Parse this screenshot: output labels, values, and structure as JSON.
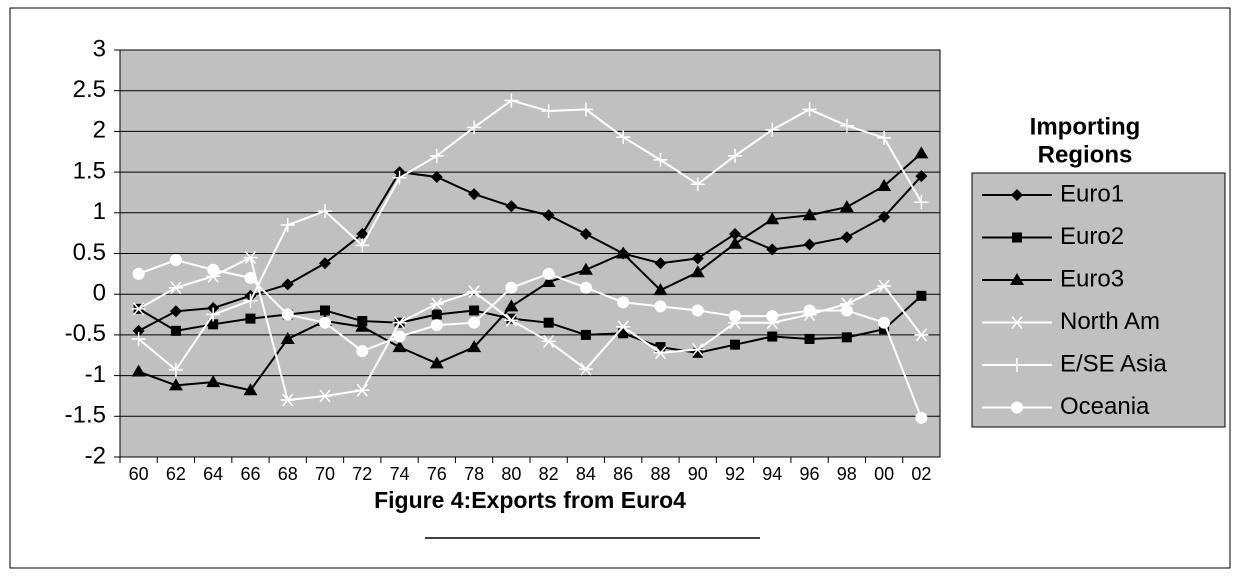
{
  "chart_data": {
    "type": "line",
    "title": "Figure 4:Exports from Euro4",
    "legend_title": "Importing Regions",
    "categories": [
      "60",
      "62",
      "64",
      "66",
      "68",
      "70",
      "72",
      "74",
      "76",
      "78",
      "80",
      "82",
      "84",
      "86",
      "88",
      "90",
      "92",
      "94",
      "96",
      "98",
      "00",
      "02"
    ],
    "ylim": [
      -2,
      3
    ],
    "yticks": [
      -2,
      -1.5,
      -1,
      -0.5,
      0,
      0.5,
      1,
      1.5,
      2,
      2.5,
      3
    ],
    "grid": true,
    "legend": "right",
    "series": [
      {
        "name": "Euro1",
        "color": "#000000",
        "marker": "diamond",
        "values": [
          -0.45,
          -0.21,
          -0.17,
          -0.02,
          0.12,
          0.38,
          0.74,
          1.5,
          1.44,
          1.23,
          1.08,
          0.97,
          0.74,
          0.5,
          0.38,
          0.44,
          0.74,
          0.55,
          0.61,
          0.7,
          0.95,
          1.45
        ]
      },
      {
        "name": "Euro2",
        "color": "#000000",
        "marker": "square",
        "values": [
          -0.18,
          -0.45,
          -0.37,
          -0.3,
          -0.25,
          -0.2,
          -0.33,
          -0.35,
          -0.25,
          -0.2,
          -0.3,
          -0.35,
          -0.5,
          -0.48,
          -0.65,
          -0.72,
          -0.62,
          -0.52,
          -0.55,
          -0.53,
          -0.43,
          -0.02
        ]
      },
      {
        "name": "Euro3",
        "color": "#000000",
        "marker": "triangle",
        "values": [
          -0.95,
          -1.12,
          -1.08,
          -1.18,
          -0.55,
          -0.33,
          -0.4,
          -0.65,
          -0.85,
          -0.65,
          -0.15,
          0.15,
          0.3,
          0.5,
          0.05,
          0.27,
          0.62,
          0.92,
          0.97,
          1.07,
          1.33,
          1.73
        ]
      },
      {
        "name": "North Am",
        "color": "#ffffff",
        "marker": "asterisk",
        "values": [
          -0.18,
          0.08,
          0.22,
          0.45,
          -1.3,
          -1.25,
          -1.18,
          -0.35,
          -0.12,
          0.03,
          -0.32,
          -0.58,
          -0.92,
          -0.4,
          -0.72,
          -0.68,
          -0.35,
          -0.35,
          -0.25,
          -0.12,
          0.1,
          -0.5
        ]
      },
      {
        "name": "E/SE Asia",
        "color": "#ffffff",
        "marker": "plus",
        "values": [
          -0.55,
          -0.93,
          -0.25,
          -0.08,
          0.85,
          1.02,
          0.6,
          1.43,
          1.7,
          2.05,
          2.38,
          2.25,
          2.27,
          1.93,
          1.65,
          1.35,
          1.7,
          2.02,
          2.27,
          2.07,
          1.92,
          1.13
        ]
      },
      {
        "name": "Oceania",
        "color": "#ffffff",
        "marker": "circle",
        "values": [
          0.25,
          0.42,
          0.3,
          0.2,
          -0.25,
          -0.35,
          -0.7,
          -0.52,
          -0.38,
          -0.35,
          0.08,
          0.25,
          0.08,
          -0.1,
          -0.15,
          -0.2,
          -0.27,
          -0.27,
          -0.2,
          -0.2,
          -0.35,
          -1.52
        ]
      }
    ]
  }
}
